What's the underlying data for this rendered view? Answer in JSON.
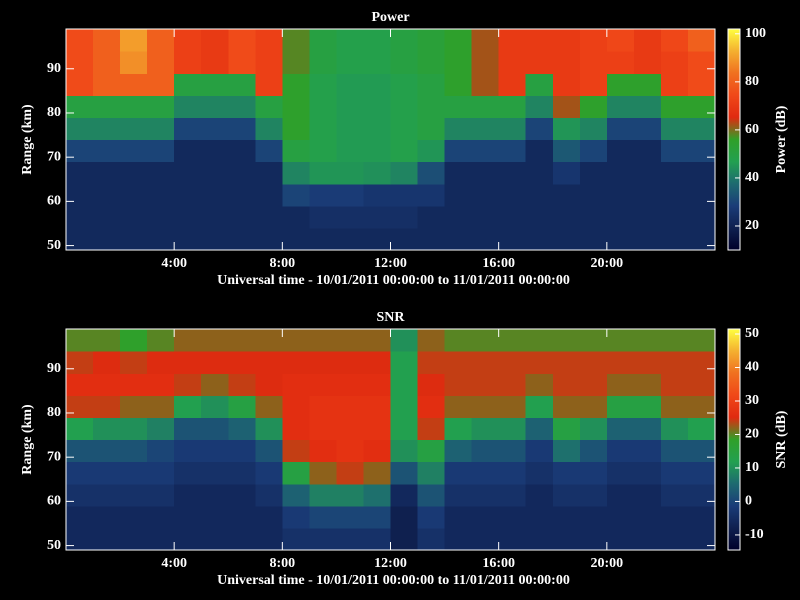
{
  "chart_data": [
    {
      "type": "heatmap",
      "title": "Power",
      "xlabel": "Universal time - 10/01/2011 00:00:00 to 11/01/2011 00:00:00",
      "ylabel": "Range (km)",
      "colorbar_label": "Power (dB)",
      "x_bins": [
        0,
        1,
        2,
        3,
        4,
        5,
        6,
        7,
        8,
        9,
        10,
        11,
        12,
        13,
        14,
        15,
        16,
        17,
        18,
        19,
        20,
        21,
        22,
        23,
        24
      ],
      "y_bins": [
        49,
        54,
        59,
        64,
        69,
        74,
        79,
        84,
        89,
        94,
        99
      ],
      "xlim": [
        0,
        24
      ],
      "ylim": [
        49,
        99
      ],
      "xticks": [
        {
          "value": 4,
          "label": "4:00"
        },
        {
          "value": 8,
          "label": "8:00"
        },
        {
          "value": 12,
          "label": "12:00"
        },
        {
          "value": 16,
          "label": "16:00"
        },
        {
          "value": 20,
          "label": "20:00"
        }
      ],
      "yticks": [
        50,
        60,
        70,
        80,
        90
      ],
      "clim": [
        10,
        102
      ],
      "cticks": [
        20,
        40,
        60,
        80,
        100
      ],
      "colorscale": [
        "#00002a",
        "#0f2050",
        "#1a3c78",
        "#1e6a70",
        "#22a050",
        "#30a028",
        "#e02a10",
        "#f04818",
        "#f07020",
        "#f4b030",
        "#ffff40"
      ],
      "z": [
        [
          22,
          22,
          22,
          22,
          30,
          42,
          50,
          75,
          75,
          75
        ],
        [
          22,
          22,
          22,
          22,
          30,
          42,
          50,
          80,
          80,
          80
        ],
        [
          22,
          22,
          22,
          22,
          30,
          42,
          50,
          80,
          88,
          90
        ],
        [
          22,
          22,
          22,
          22,
          30,
          42,
          50,
          80,
          80,
          80
        ],
        [
          22,
          22,
          22,
          22,
          22,
          30,
          42,
          50,
          72,
          72
        ],
        [
          22,
          22,
          22,
          22,
          22,
          30,
          42,
          50,
          70,
          70
        ],
        [
          22,
          22,
          22,
          22,
          22,
          30,
          42,
          50,
          75,
          75
        ],
        [
          22,
          22,
          22,
          22,
          30,
          42,
          50,
          72,
          72,
          72
        ],
        [
          22,
          22,
          30,
          42,
          50,
          55,
          55,
          55,
          58,
          58
        ],
        [
          22,
          24,
          28,
          45,
          48,
          48,
          48,
          48,
          50,
          50
        ],
        [
          22,
          24,
          28,
          45,
          46,
          46,
          46,
          46,
          48,
          48
        ],
        [
          22,
          24,
          26,
          44,
          46,
          46,
          46,
          46,
          48,
          48
        ],
        [
          22,
          24,
          26,
          42,
          48,
          48,
          48,
          48,
          50,
          50
        ],
        [
          22,
          22,
          26,
          32,
          45,
          50,
          50,
          50,
          52,
          52
        ],
        [
          22,
          22,
          22,
          22,
          30,
          42,
          50,
          55,
          55,
          55
        ],
        [
          22,
          22,
          22,
          22,
          30,
          42,
          50,
          62,
          62,
          62
        ],
        [
          22,
          22,
          22,
          22,
          30,
          42,
          50,
          70,
          70,
          70
        ],
        [
          22,
          22,
          22,
          22,
          22,
          30,
          42,
          50,
          70,
          70
        ],
        [
          22,
          22,
          22,
          26,
          34,
          45,
          62,
          70,
          70,
          70
        ],
        [
          22,
          22,
          22,
          22,
          30,
          42,
          55,
          72,
          72,
          72
        ],
        [
          22,
          22,
          22,
          22,
          22,
          30,
          42,
          55,
          72,
          74
        ],
        [
          22,
          22,
          22,
          22,
          22,
          30,
          42,
          55,
          70,
          70
        ],
        [
          22,
          22,
          22,
          22,
          30,
          42,
          55,
          72,
          72,
          74
        ],
        [
          22,
          22,
          22,
          22,
          30,
          42,
          55,
          75,
          75,
          80
        ]
      ]
    },
    {
      "type": "heatmap",
      "title": "SNR",
      "xlabel": "Universal time - 10/01/2011 00:00:00 to 11/01/2011 00:00:00",
      "ylabel": "Range (km)",
      "colorbar_label": "SNR (dB)",
      "x_bins": [
        0,
        1,
        2,
        3,
        4,
        5,
        6,
        7,
        8,
        9,
        10,
        11,
        12,
        13,
        14,
        15,
        16,
        17,
        18,
        19,
        20,
        21,
        22,
        23,
        24
      ],
      "y_bins": [
        49,
        54,
        59,
        64,
        69,
        74,
        79,
        84,
        89,
        94,
        99
      ],
      "xlim": [
        0,
        24
      ],
      "ylim": [
        49,
        99
      ],
      "xticks": [
        {
          "value": 4,
          "label": "4:00"
        },
        {
          "value": 8,
          "label": "8:00"
        },
        {
          "value": 12,
          "label": "12:00"
        },
        {
          "value": 16,
          "label": "16:00"
        },
        {
          "value": 20,
          "label": "20:00"
        }
      ],
      "yticks": [
        50,
        60,
        70,
        80,
        90
      ],
      "clim": [
        -14.5,
        51.5
      ],
      "cticks": [
        -10,
        0,
        10,
        20,
        30,
        40,
        50
      ],
      "colorscale": [
        "#00002a",
        "#0f2050",
        "#1a3c78",
        "#1e6a70",
        "#22a050",
        "#30a028",
        "#e02a10",
        "#f04818",
        "#f07020",
        "#f4b030",
        "#ffff40"
      ],
      "z": [
        [
          -6,
          -6,
          -4,
          -2,
          2,
          12,
          24,
          26,
          24,
          20
        ],
        [
          -6,
          -6,
          -4,
          -2,
          2,
          10,
          24,
          26,
          25,
          20
        ],
        [
          -6,
          -6,
          -4,
          -2,
          2,
          10,
          22,
          26,
          24,
          18
        ],
        [
          -6,
          -6,
          -4,
          -2,
          0,
          8,
          22,
          26,
          25,
          20
        ],
        [
          -6,
          -6,
          -6,
          -4,
          -2,
          2,
          12,
          24,
          25,
          22
        ],
        [
          -6,
          -6,
          -6,
          -4,
          -2,
          2,
          10,
          22,
          25,
          22
        ],
        [
          -6,
          -6,
          -6,
          -4,
          -2,
          4,
          14,
          24,
          25,
          22
        ],
        [
          -6,
          -6,
          -4,
          -2,
          2,
          10,
          22,
          25,
          25,
          22
        ],
        [
          -4,
          -2,
          4,
          14,
          24,
          26,
          26,
          26,
          25,
          22
        ],
        [
          -4,
          0,
          8,
          22,
          26,
          27,
          27,
          26,
          25,
          22
        ],
        [
          -4,
          0,
          8,
          24,
          27,
          27,
          27,
          26,
          25,
          22
        ],
        [
          -4,
          0,
          6,
          22,
          26,
          27,
          27,
          26,
          25,
          22
        ],
        [
          -8,
          -8,
          -6,
          2,
          10,
          12,
          12,
          12,
          12,
          10
        ],
        [
          -4,
          -2,
          2,
          8,
          14,
          24,
          26,
          25,
          24,
          22
        ],
        [
          -6,
          -6,
          -4,
          -2,
          4,
          12,
          22,
          24,
          24,
          20
        ],
        [
          -6,
          -6,
          -4,
          -2,
          2,
          10,
          22,
          24,
          24,
          20
        ],
        [
          -6,
          -6,
          -4,
          -2,
          2,
          10,
          22,
          24,
          24,
          20
        ],
        [
          -6,
          -6,
          -6,
          -4,
          -2,
          4,
          12,
          22,
          24,
          20
        ],
        [
          -6,
          -6,
          -4,
          -2,
          6,
          14,
          22,
          24,
          24,
          20
        ],
        [
          -6,
          -6,
          -4,
          -2,
          2,
          10,
          22,
          24,
          24,
          20
        ],
        [
          -6,
          -6,
          -6,
          -4,
          -2,
          4,
          14,
          22,
          24,
          20
        ],
        [
          -6,
          -6,
          -6,
          -4,
          -2,
          4,
          14,
          22,
          24,
          20
        ],
        [
          -6,
          -6,
          -4,
          -2,
          2,
          10,
          22,
          24,
          24,
          20
        ],
        [
          -6,
          -6,
          -4,
          -2,
          2,
          12,
          22,
          24,
          24,
          20
        ]
      ]
    }
  ]
}
